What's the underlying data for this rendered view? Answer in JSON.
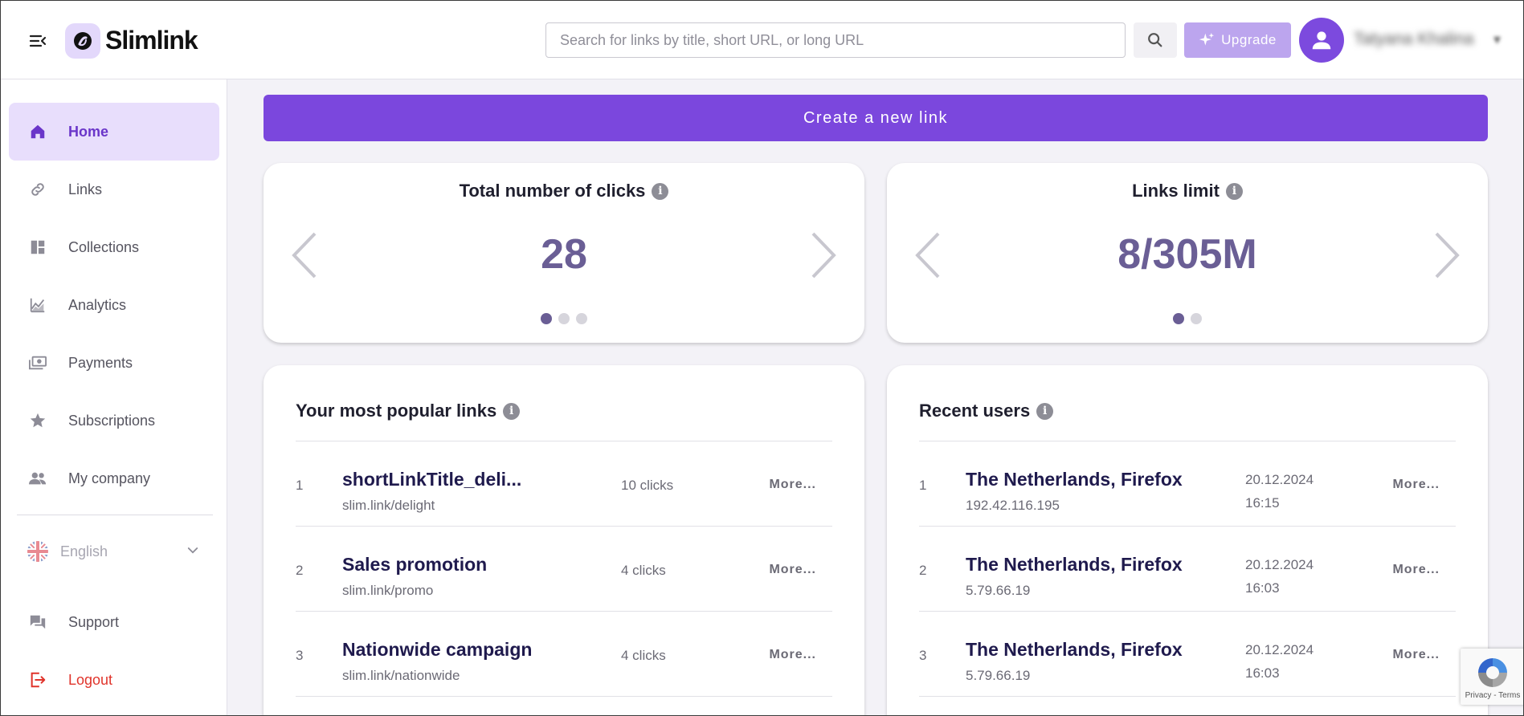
{
  "header": {
    "logo": "Slimlink",
    "search_placeholder": "Search for links by title, short URL, or long URL",
    "upgrade_label": "Upgrade",
    "user_name": "Tatyana Khalina"
  },
  "sidebar": {
    "items": [
      {
        "label": "Home",
        "icon": "home-icon",
        "active": true
      },
      {
        "label": "Links",
        "icon": "link-icon"
      },
      {
        "label": "Collections",
        "icon": "collections-icon"
      },
      {
        "label": "Analytics",
        "icon": "analytics-icon"
      },
      {
        "label": "Payments",
        "icon": "payments-icon"
      },
      {
        "label": "Subscriptions",
        "icon": "star-icon"
      },
      {
        "label": "My company",
        "icon": "people-icon"
      }
    ],
    "language": "English",
    "support_label": "Support",
    "logout_label": "Logout"
  },
  "main": {
    "create_label": "Create a new link",
    "stats": [
      {
        "title": "Total number of clicks",
        "value": "28",
        "dots": 3,
        "active_dot": 0
      },
      {
        "title": "Links limit",
        "value": "8/305M",
        "dots": 2,
        "active_dot": 0
      }
    ],
    "popular": {
      "title": "Your most popular links",
      "rows": [
        {
          "rank": "1",
          "title": "shortLinkTitle_deli...",
          "url": "slim.link/delight",
          "clicks": "10 clicks",
          "more": "More..."
        },
        {
          "rank": "2",
          "title": "Sales promotion",
          "url": "slim.link/promo",
          "clicks": "4 clicks",
          "more": "More..."
        },
        {
          "rank": "3",
          "title": "Nationwide campaign",
          "url": "slim.link/nationwide",
          "clicks": "4 clicks",
          "more": "More..."
        }
      ]
    },
    "recent": {
      "title": "Recent users",
      "rows": [
        {
          "rank": "1",
          "title": "The Netherlands, Firefox",
          "ip": "192.42.116.195",
          "date": "20.12.2024",
          "time": "16:15",
          "more": "More..."
        },
        {
          "rank": "2",
          "title": "The Netherlands, Firefox",
          "ip": "5.79.66.19",
          "date": "20.12.2024",
          "time": "16:03",
          "more": "More..."
        },
        {
          "rank": "3",
          "title": "The Netherlands, Firefox",
          "ip": "5.79.66.19",
          "date": "20.12.2024",
          "time": "16:03",
          "more": "More..."
        }
      ]
    }
  },
  "recaptcha": {
    "text": "Privacy - Terms"
  },
  "colors": {
    "accent": "#7b47dd",
    "active_bg": "#e8defc",
    "logout": "#e0342b",
    "stat_value": "#6a5e95"
  }
}
